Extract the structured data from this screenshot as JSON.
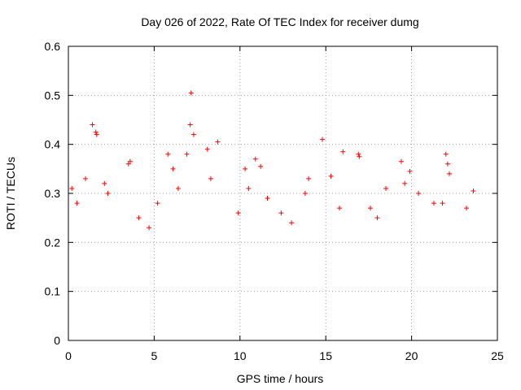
{
  "chart_data": {
    "type": "scatter",
    "title": "Day 026 of 2022, Rate Of TEC Index for receiver dumg",
    "xlabel": "GPS time / hours",
    "ylabel": "ROTI / TECUs",
    "xlim": [
      0,
      25
    ],
    "ylim": [
      0,
      0.6
    ],
    "x_ticks": [
      "0",
      "5",
      "10",
      "15",
      "20",
      "25"
    ],
    "y_ticks": [
      "0",
      "0.1",
      "0.2",
      "0.3",
      "0.4",
      "0.5",
      "0.6"
    ],
    "grid": true,
    "marker": "+",
    "color": "#ff0000",
    "series": [
      {
        "points": [
          [
            1.4,
            0.44
          ],
          [
            1.6,
            0.425
          ],
          [
            1.65,
            0.42
          ],
          [
            3.5,
            0.36
          ],
          [
            3.6,
            0.365
          ],
          [
            5.8,
            0.38
          ],
          [
            6.1,
            0.35
          ],
          [
            6.9,
            0.38
          ],
          [
            7.1,
            0.44
          ],
          [
            7.15,
            0.505
          ],
          [
            7.3,
            0.42
          ],
          [
            8.1,
            0.39
          ],
          [
            8.7,
            0.405
          ],
          [
            10.3,
            0.35
          ],
          [
            10.9,
            0.37
          ],
          [
            11.2,
            0.355
          ],
          [
            14.0,
            0.33
          ],
          [
            14.8,
            0.41
          ],
          [
            15.3,
            0.335
          ],
          [
            16.0,
            0.385
          ],
          [
            16.9,
            0.38
          ],
          [
            16.95,
            0.375
          ],
          [
            18.5,
            0.31
          ],
          [
            19.4,
            0.365
          ],
          [
            19.9,
            0.345
          ],
          [
            22.0,
            0.38
          ],
          [
            22.1,
            0.36
          ],
          [
            22.2,
            0.34
          ],
          [
            23.6,
            0.305
          ],
          [
            0.2,
            0.31
          ],
          [
            0.5,
            0.28
          ],
          [
            1.0,
            0.33
          ],
          [
            2.1,
            0.32
          ],
          [
            2.3,
            0.3
          ],
          [
            4.1,
            0.25
          ],
          [
            4.7,
            0.23
          ],
          [
            5.2,
            0.28
          ],
          [
            6.4,
            0.31
          ],
          [
            8.3,
            0.33
          ],
          [
            9.9,
            0.26
          ],
          [
            10.5,
            0.31
          ],
          [
            11.6,
            0.29
          ],
          [
            12.4,
            0.26
          ],
          [
            13.0,
            0.24
          ],
          [
            13.8,
            0.3
          ],
          [
            15.8,
            0.27
          ],
          [
            17.6,
            0.27
          ],
          [
            18.0,
            0.25
          ],
          [
            19.6,
            0.32
          ],
          [
            20.4,
            0.3
          ],
          [
            21.3,
            0.28
          ],
          [
            21.8,
            0.28
          ],
          [
            23.2,
            0.27
          ]
        ]
      }
    ]
  }
}
